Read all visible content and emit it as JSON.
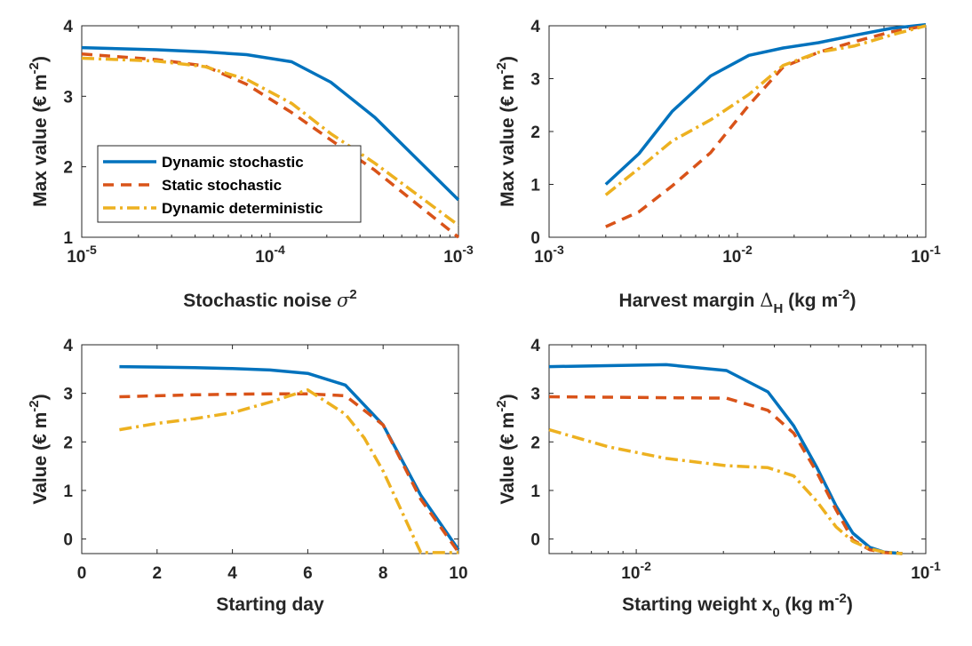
{
  "colors": {
    "dynamic_stochastic": "#0072BD",
    "static_stochastic": "#D95319",
    "dynamic_deterministic": "#EDB120",
    "axis": "#262626"
  },
  "legend": {
    "items": [
      "Dynamic stochastic",
      "Static stochastic",
      "Dynamic deterministic"
    ]
  },
  "chart_data": [
    {
      "type": "line",
      "id": "noise",
      "xscale": "log",
      "xlim": [
        1e-05,
        0.001
      ],
      "ylim": [
        1,
        4
      ],
      "xticks": [
        1e-05,
        0.0001,
        0.001
      ],
      "xtick_mantissa": [
        "10",
        "10",
        "10"
      ],
      "xtick_exponent": [
        "-5",
        "-4",
        "-3"
      ],
      "yticks": [
        1,
        2,
        3,
        4
      ],
      "ytick_labels": [
        "1",
        "2",
        "3",
        "4"
      ],
      "xlabel_main": "Stochastic noise ",
      "xlabel_symbol": "σ",
      "xlabel_sup": "2",
      "ylabel_main": "Max value (€ m",
      "ylabel_sup": "-2",
      "ylabel_close": ")",
      "series": [
        {
          "name": "Dynamic stochastic",
          "x": [
            1e-05,
            2.5e-05,
            4.5e-05,
            7.5e-05,
            0.00013,
            0.00021,
            0.00036,
            0.001
          ],
          "y": [
            3.69,
            3.66,
            3.63,
            3.59,
            3.49,
            3.2,
            2.7,
            1.53
          ]
        },
        {
          "name": "Static stochastic",
          "x": [
            1e-05,
            2.5e-05,
            4.5e-05,
            7.5e-05,
            0.00013,
            0.00021,
            0.00036,
            0.001
          ],
          "y": [
            3.6,
            3.52,
            3.43,
            3.17,
            2.77,
            2.38,
            1.95,
            1.0
          ]
        },
        {
          "name": "Dynamic deterministic",
          "x": [
            1e-05,
            2.5e-05,
            4.5e-05,
            7.5e-05,
            0.00013,
            0.00021,
            0.00036,
            0.001
          ],
          "y": [
            3.54,
            3.5,
            3.42,
            3.24,
            2.9,
            2.47,
            2.05,
            1.17
          ]
        }
      ]
    },
    {
      "type": "line",
      "id": "harvest",
      "xscale": "log",
      "xlim": [
        0.001,
        0.1
      ],
      "ylim": [
        0,
        4
      ],
      "xticks": [
        0.001,
        0.01,
        0.1
      ],
      "xtick_mantissa": [
        "10",
        "10",
        "10"
      ],
      "xtick_exponent": [
        "-3",
        "-2",
        "-1"
      ],
      "yticks": [
        0,
        1,
        2,
        3,
        4
      ],
      "ytick_labels": [
        "0",
        "1",
        "2",
        "3",
        "4"
      ],
      "xlabel_main": "Harvest margin ",
      "xlabel_symbol": "Δ",
      "xlabel_sub": "H",
      "xlabel_tail": " (kg m",
      "xlabel_sup": "-2",
      "xlabel_close": ")",
      "ylabel_main": "Max value (€ m",
      "ylabel_sup": "-2",
      "ylabel_close": ")",
      "series": [
        {
          "name": "Dynamic stochastic",
          "x": [
            0.002,
            0.003,
            0.0045,
            0.0072,
            0.0115,
            0.0175,
            0.027,
            0.042,
            0.065,
            0.1
          ],
          "y": [
            1.0,
            1.58,
            2.38,
            3.05,
            3.44,
            3.58,
            3.68,
            3.82,
            3.95,
            4.02
          ]
        },
        {
          "name": "Static stochastic",
          "x": [
            0.002,
            0.003,
            0.0045,
            0.0072,
            0.0115,
            0.0175,
            0.027,
            0.042,
            0.065,
            0.1
          ],
          "y": [
            0.2,
            0.48,
            0.97,
            1.6,
            2.5,
            3.22,
            3.5,
            3.7,
            3.88,
            4.0
          ]
        },
        {
          "name": "Dynamic deterministic",
          "x": [
            0.002,
            0.003,
            0.0045,
            0.0072,
            0.0115,
            0.0175,
            0.027,
            0.042,
            0.065,
            0.1
          ],
          "y": [
            0.8,
            1.3,
            1.82,
            2.22,
            2.7,
            3.25,
            3.5,
            3.62,
            3.82,
            4.0
          ]
        }
      ]
    },
    {
      "type": "line",
      "id": "day",
      "xscale": "linear",
      "xlim": [
        0,
        10
      ],
      "ylim": [
        -0.3,
        4
      ],
      "xticks": [
        0,
        2,
        4,
        6,
        8,
        10
      ],
      "xtick_labels": [
        "0",
        "2",
        "4",
        "6",
        "8",
        "10"
      ],
      "yticks": [
        0,
        1,
        2,
        3,
        4
      ],
      "ytick_labels": [
        "0",
        "1",
        "2",
        "3",
        "4"
      ],
      "xlabel_main": "Starting day",
      "ylabel_main": "Value (€ m",
      "ylabel_sup": "-2",
      "ylabel_close": ")",
      "series": [
        {
          "name": "Dynamic stochastic",
          "x": [
            1,
            2,
            3,
            4,
            5,
            6,
            7,
            8,
            9,
            10
          ],
          "y": [
            3.55,
            3.54,
            3.53,
            3.51,
            3.48,
            3.41,
            3.17,
            2.35,
            0.9,
            -0.22
          ]
        },
        {
          "name": "Static stochastic",
          "x": [
            1,
            2,
            3,
            4,
            5,
            6,
            7,
            8,
            9,
            10
          ],
          "y": [
            2.93,
            2.95,
            2.97,
            2.98,
            2.99,
            2.99,
            2.95,
            2.35,
            0.82,
            -0.27
          ]
        },
        {
          "name": "Dynamic deterministic",
          "x": [
            1,
            2,
            3,
            4,
            5,
            6,
            7,
            7.5,
            8,
            8.5,
            9,
            10
          ],
          "y": [
            2.25,
            2.38,
            2.48,
            2.6,
            2.82,
            3.07,
            2.57,
            2.08,
            1.4,
            0.56,
            -0.28,
            -0.28
          ]
        }
      ]
    },
    {
      "type": "line",
      "id": "weight",
      "xscale": "log",
      "xlim": [
        0.005,
        0.1
      ],
      "ylim": [
        -0.3,
        4
      ],
      "xticks": [
        0.01,
        0.1
      ],
      "xtick_mantissa": [
        "10",
        "10"
      ],
      "xtick_exponent": [
        "-2",
        "-1"
      ],
      "yticks": [
        0,
        1,
        2,
        3,
        4
      ],
      "ytick_labels": [
        "0",
        "1",
        "2",
        "3",
        "4"
      ],
      "xlabel_main": "Starting weight x",
      "xlabel_sub": "0",
      "xlabel_tail": " (kg m",
      "xlabel_sup": "-2",
      "xlabel_close": ")",
      "ylabel_main": "Value (€ m",
      "ylabel_sup": "-2",
      "ylabel_close": ")",
      "series": [
        {
          "name": "Dynamic stochastic",
          "x": [
            0.005,
            0.008,
            0.0127,
            0.0205,
            0.0285,
            0.035,
            0.042,
            0.049,
            0.056,
            0.064,
            0.072,
            0.083
          ],
          "y": [
            3.55,
            3.57,
            3.59,
            3.47,
            3.03,
            2.33,
            1.48,
            0.68,
            0.12,
            -0.17,
            -0.27,
            -0.3
          ]
        },
        {
          "name": "Static stochastic",
          "x": [
            0.005,
            0.008,
            0.0127,
            0.0205,
            0.0285,
            0.035,
            0.042,
            0.049,
            0.056,
            0.064,
            0.072,
            0.083
          ],
          "y": [
            2.93,
            2.92,
            2.91,
            2.9,
            2.65,
            2.18,
            1.38,
            0.6,
            -0.02,
            -0.22,
            -0.28,
            -0.3
          ]
        },
        {
          "name": "Dynamic deterministic",
          "x": [
            0.005,
            0.008,
            0.0127,
            0.0205,
            0.0285,
            0.035,
            0.042,
            0.049,
            0.056,
            0.064,
            0.072,
            0.083
          ],
          "y": [
            2.25,
            1.9,
            1.66,
            1.51,
            1.47,
            1.3,
            0.78,
            0.25,
            -0.05,
            -0.2,
            -0.27,
            -0.3
          ]
        }
      ]
    }
  ]
}
